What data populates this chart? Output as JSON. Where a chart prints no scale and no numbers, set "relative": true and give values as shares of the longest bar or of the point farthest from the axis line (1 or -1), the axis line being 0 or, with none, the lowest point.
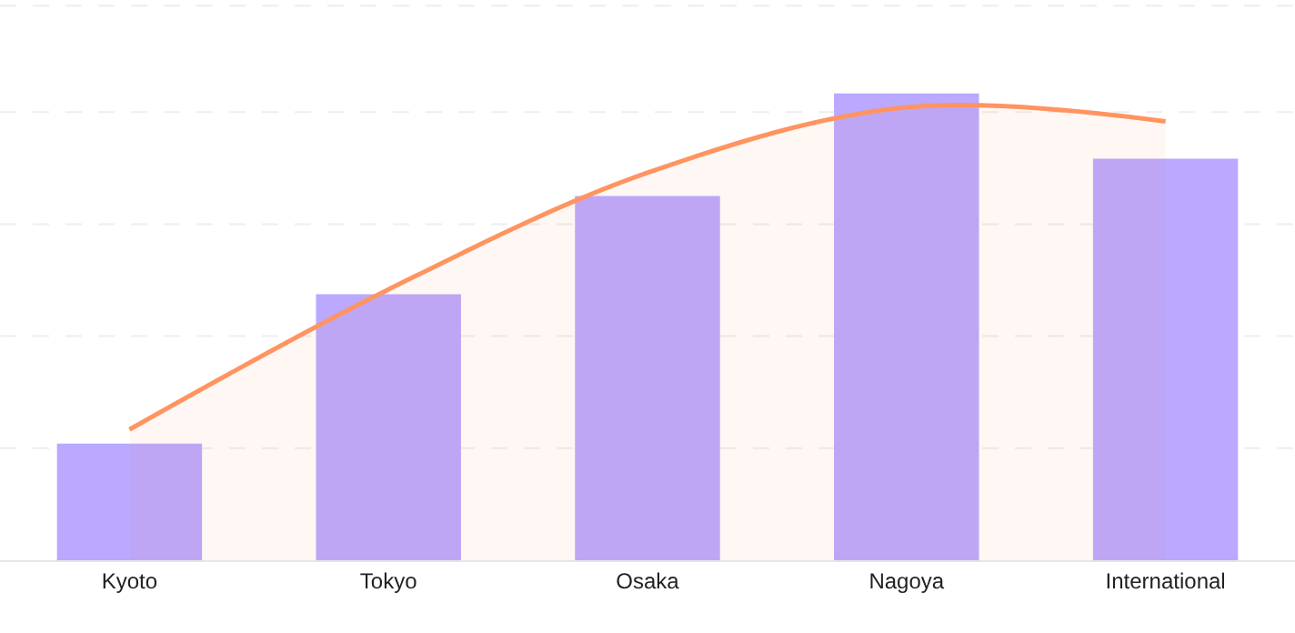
{
  "chart_data": {
    "type": "bar",
    "relative": true,
    "categories": [
      "Kyoto",
      "Tokyo",
      "Osaka",
      "Nagoya",
      "International"
    ],
    "series": [
      {
        "color": "#bba8ff",
        "values": [
          0.25,
          0.57,
          0.78,
          1,
          0.86
        ]
      },
      {
        "type": "area",
        "color": "#ff9460",
        "values": [
          0.28,
          0.58,
          0.83,
          0.97,
          0.94
        ]
      }
    ],
    "grid": "y",
    "legend": false
  }
}
